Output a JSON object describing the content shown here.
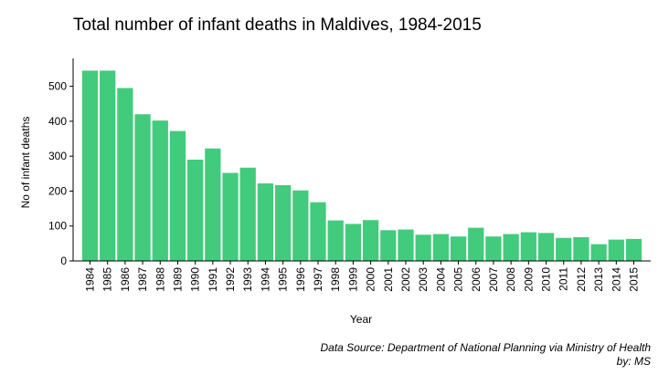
{
  "chart_data": {
    "type": "bar",
    "title": "Total number of infant deaths in Maldives, 1984-2015",
    "xlabel": "Year",
    "ylabel": "No of infant deaths",
    "ylim": [
      0,
      580
    ],
    "yticks": [
      0,
      100,
      200,
      300,
      400,
      500
    ],
    "bar_color": "#42CB7C",
    "categories": [
      "1984",
      "1985",
      "1986",
      "1987",
      "1988",
      "1989",
      "1990",
      "1991",
      "1992",
      "1993",
      "1994",
      "1995",
      "1996",
      "1997",
      "1998",
      "1999",
      "2000",
      "2001",
      "2002",
      "2003",
      "2004",
      "2005",
      "2006",
      "2007",
      "2008",
      "2009",
      "2010",
      "2011",
      "2012",
      "2013",
      "2014",
      "2015"
    ],
    "values": [
      545,
      545,
      495,
      420,
      402,
      372,
      290,
      322,
      252,
      267,
      222,
      217,
      202,
      168,
      116,
      106,
      117,
      88,
      90,
      75,
      77,
      70,
      95,
      70,
      77,
      82,
      80,
      66,
      68,
      48,
      61,
      63
    ]
  },
  "caption": {
    "source": "Data Source: Department of National Planning via Ministry of Health",
    "author": "by: MS"
  }
}
